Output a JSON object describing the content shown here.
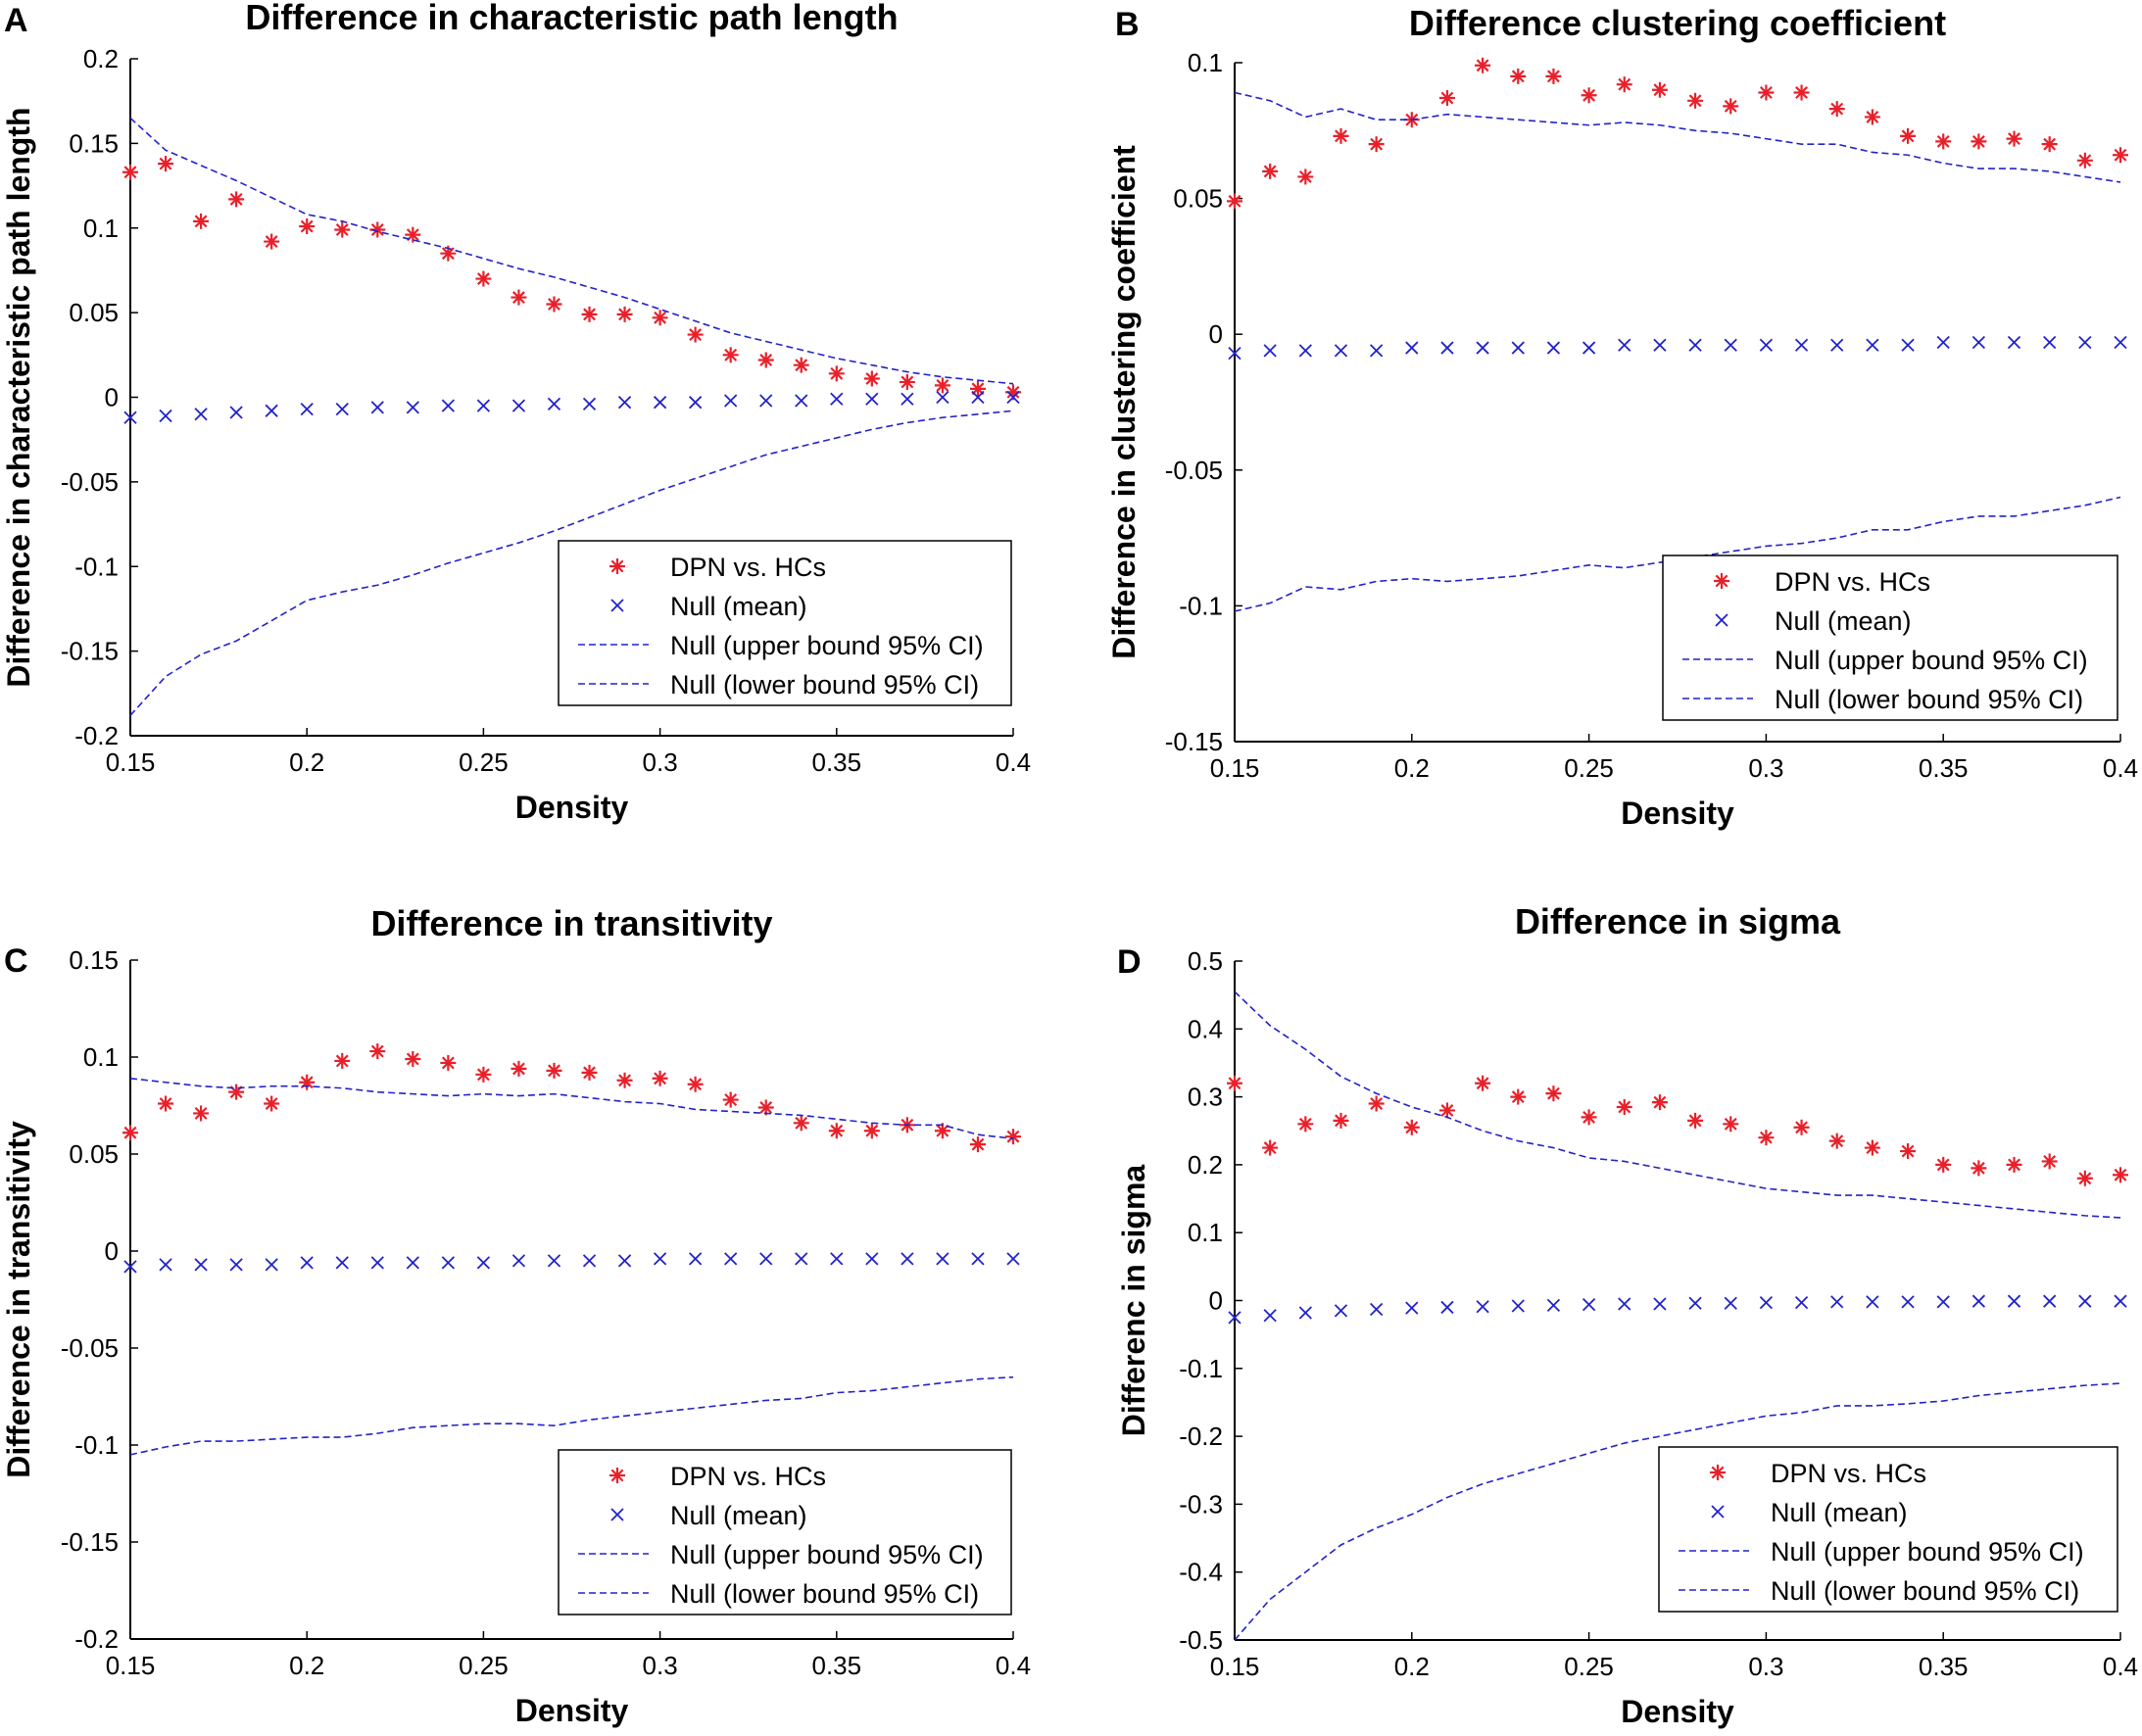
{
  "chart_data": [
    {
      "panel": "A",
      "type": "scatter",
      "title": "Difference in characteristic path length",
      "xlabel": "Density",
      "ylabel": "Difference in characteristic path length",
      "xlim": [
        0.15,
        0.4
      ],
      "ylim": [
        -0.2,
        0.2
      ],
      "xticks": [
        "0.15",
        "0.2",
        "0.25",
        "0.3",
        "0.35",
        "0.4"
      ],
      "yticks": [
        "-0.2",
        "-0.15",
        "-0.1",
        "-0.05",
        "0",
        "0.05",
        "0.1",
        "0.15",
        "0.2"
      ],
      "legend_position": "bottom-right",
      "x": [
        0.15,
        0.16,
        0.17,
        0.18,
        0.19,
        0.2,
        0.21,
        0.22,
        0.23,
        0.24,
        0.25,
        0.26,
        0.27,
        0.28,
        0.29,
        0.3,
        0.31,
        0.32,
        0.33,
        0.34,
        0.35,
        0.36,
        0.37,
        0.38,
        0.39,
        0.4
      ],
      "series": [
        {
          "name": "DPN vs. HCs",
          "marker": "asterisk",
          "color": "#e8202a",
          "values": [
            0.133,
            0.138,
            0.104,
            0.117,
            0.092,
            0.101,
            0.099,
            0.099,
            0.096,
            0.085,
            0.07,
            0.059,
            0.055,
            0.049,
            0.049,
            0.047,
            0.037,
            0.025,
            0.022,
            0.019,
            0.014,
            0.011,
            0.009,
            0.007,
            0.005,
            0.003
          ]
        },
        {
          "name": "Null (mean)",
          "marker": "x",
          "color": "#2222cc",
          "values": [
            -0.012,
            -0.011,
            -0.01,
            -0.009,
            -0.008,
            -0.007,
            -0.007,
            -0.006,
            -0.006,
            -0.005,
            -0.005,
            -0.005,
            -0.004,
            -0.004,
            -0.003,
            -0.003,
            -0.003,
            -0.002,
            -0.002,
            -0.002,
            -0.001,
            -0.001,
            -0.001,
            0.0,
            0.0,
            0.0
          ]
        },
        {
          "name": "Null (upper bound 95% CI)",
          "line": "dashed",
          "color": "#2222cc",
          "values": [
            0.165,
            0.146,
            0.137,
            0.128,
            0.118,
            0.108,
            0.104,
            0.098,
            0.093,
            0.088,
            0.082,
            0.076,
            0.071,
            0.065,
            0.059,
            0.052,
            0.045,
            0.038,
            0.033,
            0.028,
            0.023,
            0.019,
            0.015,
            0.012,
            0.01,
            0.008
          ]
        },
        {
          "name": "Null (lower bound 95% CI)",
          "line": "dashed",
          "color": "#2222cc",
          "values": [
            -0.188,
            -0.165,
            -0.152,
            -0.144,
            -0.132,
            -0.12,
            -0.115,
            -0.111,
            -0.105,
            -0.098,
            -0.092,
            -0.086,
            -0.079,
            -0.071,
            -0.063,
            -0.055,
            -0.048,
            -0.041,
            -0.034,
            -0.029,
            -0.024,
            -0.019,
            -0.015,
            -0.012,
            -0.01,
            -0.008
          ]
        }
      ]
    },
    {
      "panel": "B",
      "type": "scatter",
      "title": "Difference clustering coefficient",
      "xlabel": "Density",
      "ylabel": "Difference in clustering coefficient",
      "xlim": [
        0.15,
        0.4
      ],
      "ylim": [
        -0.15,
        0.1
      ],
      "xticks": [
        "0.15",
        "0.2",
        "0.25",
        "0.3",
        "0.35",
        "0.4"
      ],
      "yticks": [
        "-0.15",
        "-0.1",
        "-0.05",
        "0",
        "0.05",
        "0.1"
      ],
      "legend_position": "bottom-right",
      "x": [
        0.15,
        0.16,
        0.17,
        0.18,
        0.19,
        0.2,
        0.21,
        0.22,
        0.23,
        0.24,
        0.25,
        0.26,
        0.27,
        0.28,
        0.29,
        0.3,
        0.31,
        0.32,
        0.33,
        0.34,
        0.35,
        0.36,
        0.37,
        0.38,
        0.39,
        0.4
      ],
      "series": [
        {
          "name": "DPN vs. HCs",
          "marker": "asterisk",
          "color": "#e8202a",
          "values": [
            0.049,
            0.06,
            0.058,
            0.073,
            0.07,
            0.079,
            0.087,
            0.099,
            0.095,
            0.095,
            0.088,
            0.092,
            0.09,
            0.086,
            0.084,
            0.089,
            0.089,
            0.083,
            0.08,
            0.073,
            0.071,
            0.071,
            0.072,
            0.07,
            0.064,
            0.066
          ]
        },
        {
          "name": "Null (mean)",
          "marker": "x",
          "color": "#2222cc",
          "values": [
            -0.007,
            -0.006,
            -0.006,
            -0.006,
            -0.006,
            -0.005,
            -0.005,
            -0.005,
            -0.005,
            -0.005,
            -0.005,
            -0.004,
            -0.004,
            -0.004,
            -0.004,
            -0.004,
            -0.004,
            -0.004,
            -0.004,
            -0.004,
            -0.003,
            -0.003,
            -0.003,
            -0.003,
            -0.003,
            -0.003
          ]
        },
        {
          "name": "Null (upper bound 95% CI)",
          "line": "dashed",
          "color": "#2222cc",
          "values": [
            0.089,
            0.086,
            0.08,
            0.083,
            0.079,
            0.079,
            0.081,
            0.08,
            0.079,
            0.078,
            0.077,
            0.078,
            0.077,
            0.075,
            0.074,
            0.072,
            0.07,
            0.07,
            0.067,
            0.066,
            0.063,
            0.061,
            0.061,
            0.06,
            0.058,
            0.056
          ]
        },
        {
          "name": "Null (lower bound 95% CI)",
          "line": "dashed",
          "color": "#2222cc",
          "values": [
            -0.102,
            -0.099,
            -0.093,
            -0.094,
            -0.091,
            -0.09,
            -0.091,
            -0.09,
            -0.089,
            -0.087,
            -0.085,
            -0.086,
            -0.084,
            -0.082,
            -0.08,
            -0.078,
            -0.077,
            -0.075,
            -0.072,
            -0.072,
            -0.069,
            -0.067,
            -0.067,
            -0.065,
            -0.063,
            -0.06
          ]
        }
      ]
    },
    {
      "panel": "C",
      "type": "scatter",
      "title": "Difference in transitivity",
      "xlabel": "Density",
      "ylabel": "Difference in transitivity",
      "xlim": [
        0.15,
        0.4
      ],
      "ylim": [
        -0.2,
        0.15
      ],
      "xticks": [
        "0.15",
        "0.2",
        "0.25",
        "0.3",
        "0.35",
        "0.4"
      ],
      "yticks": [
        "-0.2",
        "-0.15",
        "-0.1",
        "-0.05",
        "0",
        "0.05",
        "0.1",
        "0.15"
      ],
      "legend_position": "bottom-right",
      "x": [
        0.15,
        0.16,
        0.17,
        0.18,
        0.19,
        0.2,
        0.21,
        0.22,
        0.23,
        0.24,
        0.25,
        0.26,
        0.27,
        0.28,
        0.29,
        0.3,
        0.31,
        0.32,
        0.33,
        0.34,
        0.35,
        0.36,
        0.37,
        0.38,
        0.39,
        0.4
      ],
      "series": [
        {
          "name": "DPN vs. HCs",
          "marker": "asterisk",
          "color": "#e8202a",
          "values": [
            0.061,
            0.076,
            0.071,
            0.082,
            0.076,
            0.087,
            0.098,
            0.103,
            0.099,
            0.097,
            0.091,
            0.094,
            0.093,
            0.092,
            0.088,
            0.089,
            0.086,
            0.078,
            0.074,
            0.066,
            0.062,
            0.062,
            0.065,
            0.062,
            0.055,
            0.059
          ]
        },
        {
          "name": "Null (mean)",
          "marker": "x",
          "color": "#2222cc",
          "values": [
            -0.008,
            -0.007,
            -0.007,
            -0.007,
            -0.007,
            -0.006,
            -0.006,
            -0.006,
            -0.006,
            -0.006,
            -0.006,
            -0.005,
            -0.005,
            -0.005,
            -0.005,
            -0.004,
            -0.004,
            -0.004,
            -0.004,
            -0.004,
            -0.004,
            -0.004,
            -0.004,
            -0.004,
            -0.004,
            -0.004
          ]
        },
        {
          "name": "Null (upper bound 95% CI)",
          "line": "dashed",
          "color": "#2222cc",
          "values": [
            0.089,
            0.087,
            0.085,
            0.084,
            0.085,
            0.085,
            0.084,
            0.082,
            0.081,
            0.08,
            0.081,
            0.08,
            0.081,
            0.079,
            0.077,
            0.076,
            0.073,
            0.072,
            0.071,
            0.07,
            0.068,
            0.066,
            0.065,
            0.065,
            0.06,
            0.058
          ]
        },
        {
          "name": "Null (lower bound 95% CI)",
          "line": "dashed",
          "color": "#2222cc",
          "values": [
            -0.105,
            -0.101,
            -0.098,
            -0.098,
            -0.097,
            -0.096,
            -0.096,
            -0.094,
            -0.091,
            -0.09,
            -0.089,
            -0.089,
            -0.09,
            -0.087,
            -0.085,
            -0.083,
            -0.081,
            -0.079,
            -0.077,
            -0.076,
            -0.073,
            -0.072,
            -0.07,
            -0.068,
            -0.066,
            -0.065
          ]
        }
      ]
    },
    {
      "panel": "D",
      "type": "scatter",
      "title": "Difference in sigma",
      "xlabel": "Density",
      "ylabel": "Differenc in sigma",
      "xlim": [
        0.15,
        0.4
      ],
      "ylim": [
        -0.5,
        0.5
      ],
      "xticks": [
        "0.15",
        "0.2",
        "0.25",
        "0.3",
        "0.35",
        "0.4"
      ],
      "yticks": [
        "-0.5",
        "-0.4",
        "-0.3",
        "-0.2",
        "-0.1",
        "0",
        "0.1",
        "0.2",
        "0.3",
        "0.4",
        "0.5"
      ],
      "legend_position": "bottom-right",
      "x": [
        0.15,
        0.16,
        0.17,
        0.18,
        0.19,
        0.2,
        0.21,
        0.22,
        0.23,
        0.24,
        0.25,
        0.26,
        0.27,
        0.28,
        0.29,
        0.3,
        0.31,
        0.32,
        0.33,
        0.34,
        0.35,
        0.36,
        0.37,
        0.38,
        0.39,
        0.4
      ],
      "series": [
        {
          "name": "DPN vs. HCs",
          "marker": "asterisk",
          "color": "#e8202a",
          "values": [
            0.32,
            0.225,
            0.26,
            0.265,
            0.29,
            0.255,
            0.28,
            0.32,
            0.3,
            0.305,
            0.27,
            0.285,
            0.292,
            0.265,
            0.26,
            0.24,
            0.255,
            0.235,
            0.225,
            0.22,
            0.2,
            0.195,
            0.2,
            0.205,
            0.18,
            0.185
          ]
        },
        {
          "name": "Null (mean)",
          "marker": "x",
          "color": "#2222cc",
          "values": [
            -0.025,
            -0.022,
            -0.018,
            -0.015,
            -0.013,
            -0.011,
            -0.01,
            -0.009,
            -0.008,
            -0.007,
            -0.006,
            -0.005,
            -0.005,
            -0.004,
            -0.004,
            -0.003,
            -0.003,
            -0.002,
            -0.002,
            -0.002,
            -0.002,
            -0.001,
            -0.001,
            -0.001,
            -0.001,
            -0.001
          ]
        },
        {
          "name": "Null (upper bound 95% CI)",
          "line": "dashed",
          "color": "#2222cc",
          "values": [
            0.455,
            0.405,
            0.37,
            0.33,
            0.305,
            0.285,
            0.27,
            0.25,
            0.235,
            0.225,
            0.21,
            0.205,
            0.195,
            0.185,
            0.175,
            0.165,
            0.16,
            0.155,
            0.155,
            0.15,
            0.145,
            0.14,
            0.135,
            0.13,
            0.125,
            0.122
          ]
        },
        {
          "name": "Null (lower bound 95% CI)",
          "line": "dashed",
          "color": "#2222cc",
          "values": [
            -0.5,
            -0.44,
            -0.4,
            -0.36,
            -0.335,
            -0.315,
            -0.29,
            -0.27,
            -0.255,
            -0.24,
            -0.225,
            -0.21,
            -0.2,
            -0.19,
            -0.18,
            -0.17,
            -0.165,
            -0.155,
            -0.155,
            -0.152,
            -0.148,
            -0.14,
            -0.135,
            -0.13,
            -0.125,
            -0.122
          ]
        }
      ]
    }
  ],
  "legend_labels": {
    "dpn": "DPN vs. HCs",
    "mean": "Null (mean)",
    "upper": "Null (upper bound 95% CI)",
    "lower": "Null (lower bound 95% CI)"
  },
  "colors": {
    "dpn": "#e8202a",
    "null": "#2222cc",
    "axis": "#000000"
  }
}
